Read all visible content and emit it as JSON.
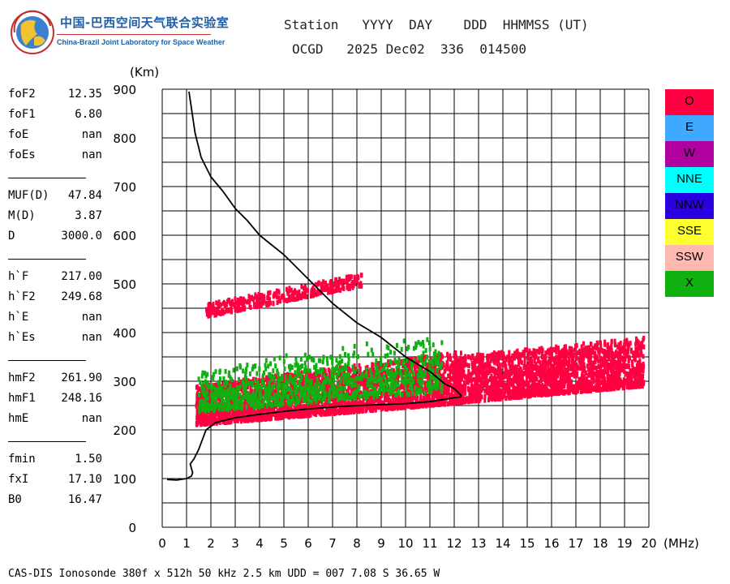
{
  "logo": {
    "title": "中国-巴西空间天气联合实验室",
    "subtitle": "China-Brazil Joint Laboratory for Space Weather"
  },
  "header": {
    "line1": "Station   YYYY  DAY    DDD  HHMMSS (UT)",
    "line2": "OCGD   2025 Dec02  336  014500"
  },
  "params": [
    [
      {
        "name": "foF2",
        "value": "12.35"
      },
      {
        "name": "foF1",
        "value": "6.80"
      },
      {
        "name": "foE",
        "value": "nan"
      },
      {
        "name": "foEs",
        "value": "nan"
      }
    ],
    [
      {
        "name": "MUF(D)",
        "value": "47.84"
      },
      {
        "name": "M(D)",
        "value": "3.87"
      },
      {
        "name": "D",
        "value": "3000.0"
      }
    ],
    [
      {
        "name": "h`F",
        "value": "217.00"
      },
      {
        "name": "h`F2",
        "value": "249.68"
      },
      {
        "name": "h`E",
        "value": "nan"
      },
      {
        "name": "h`Es",
        "value": "nan"
      }
    ],
    [
      {
        "name": "hmF2",
        "value": "261.90"
      },
      {
        "name": "hmF1",
        "value": "248.16"
      },
      {
        "name": "hmE",
        "value": "nan"
      }
    ],
    [
      {
        "name": "fmin",
        "value": "1.50"
      },
      {
        "name": "fxI",
        "value": "17.10"
      },
      {
        "name": "B0",
        "value": "16.47"
      }
    ]
  ],
  "legend": [
    {
      "label": "O",
      "color": "#ff0040"
    },
    {
      "label": "E",
      "color": "#3fa9ff"
    },
    {
      "label": "W",
      "color": "#b0009f"
    },
    {
      "label": "NNE",
      "color": "#00ffff"
    },
    {
      "label": "NNW",
      "color": "#2b00e0"
    },
    {
      "label": "SSE",
      "color": "#ffff30"
    },
    {
      "label": "SSW",
      "color": "#ffb8b0"
    },
    {
      "label": "X",
      "color": "#10b010"
    }
  ],
  "footer": "CAS-DIS Ionosonde 380f x 512h 50 kHz 2.5 km UDD = 007 7.08 S 36.65 W",
  "chart_data": {
    "type": "scatter",
    "xlabel": "(MHz)",
    "ylabel": "(Km)",
    "xlim": [
      0,
      20
    ],
    "ylim": [
      0,
      900
    ],
    "xticks": [
      0,
      1,
      2,
      3,
      4,
      5,
      6,
      7,
      8,
      9,
      10,
      11,
      12,
      13,
      14,
      15,
      16,
      17,
      18,
      19,
      20
    ],
    "yticks": [
      0,
      100,
      200,
      300,
      400,
      500,
      600,
      700,
      800,
      900
    ],
    "grid": true,
    "series": [
      {
        "name": "O",
        "color": "#ff0040",
        "bands": [
          {
            "x": [
              1.4,
              12.3
            ],
            "y_low": [
              210,
              255
            ],
            "y_high": [
              290,
              360
            ],
            "kind": "F-layer"
          },
          {
            "x": [
              12.0,
              19.8
            ],
            "y_low": [
              255,
              290
            ],
            "y_high": [
              350,
              390
            ],
            "kind": "F-spread"
          },
          {
            "x": [
              1.8,
              8.2
            ],
            "y_low": [
              432,
              495
            ],
            "y_high": [
              458,
              520
            ],
            "kind": "second-hop"
          }
        ]
      },
      {
        "name": "X",
        "color": "#10b010",
        "bands": [
          {
            "x": [
              1.5,
              11.5
            ],
            "y_low": [
              225,
              265
            ],
            "y_high": [
              330,
              400
            ],
            "kind": "F-layer"
          }
        ]
      }
    ],
    "profile": {
      "name": "electron density profile",
      "x": [
        1.1,
        1.35,
        1.6,
        2.0,
        2.5,
        3.0,
        3.5,
        4.0,
        4.5,
        5.0,
        6.0,
        7.0,
        8.0,
        9.0,
        10.0,
        11.0,
        11.6,
        12.0,
        12.3
      ],
      "y": [
        895,
        810,
        760,
        720,
        690,
        655,
        630,
        600,
        580,
        560,
        510,
        460,
        420,
        390,
        350,
        320,
        295,
        285,
        270
      ]
    },
    "trace": {
      "name": "true height",
      "x": [
        0.2,
        0.6,
        1.0,
        1.2,
        1.25,
        1.15,
        1.3,
        1.5,
        1.8,
        2.2,
        3.0,
        4.0,
        5.0,
        6.0,
        7.0,
        8.0,
        9.0,
        10.0,
        11.0,
        11.5,
        12.0,
        12.3
      ],
      "y": [
        98,
        97,
        100,
        105,
        112,
        130,
        140,
        160,
        200,
        215,
        225,
        232,
        238,
        243,
        247,
        250,
        252,
        254,
        258,
        262,
        266,
        268
      ]
    }
  }
}
